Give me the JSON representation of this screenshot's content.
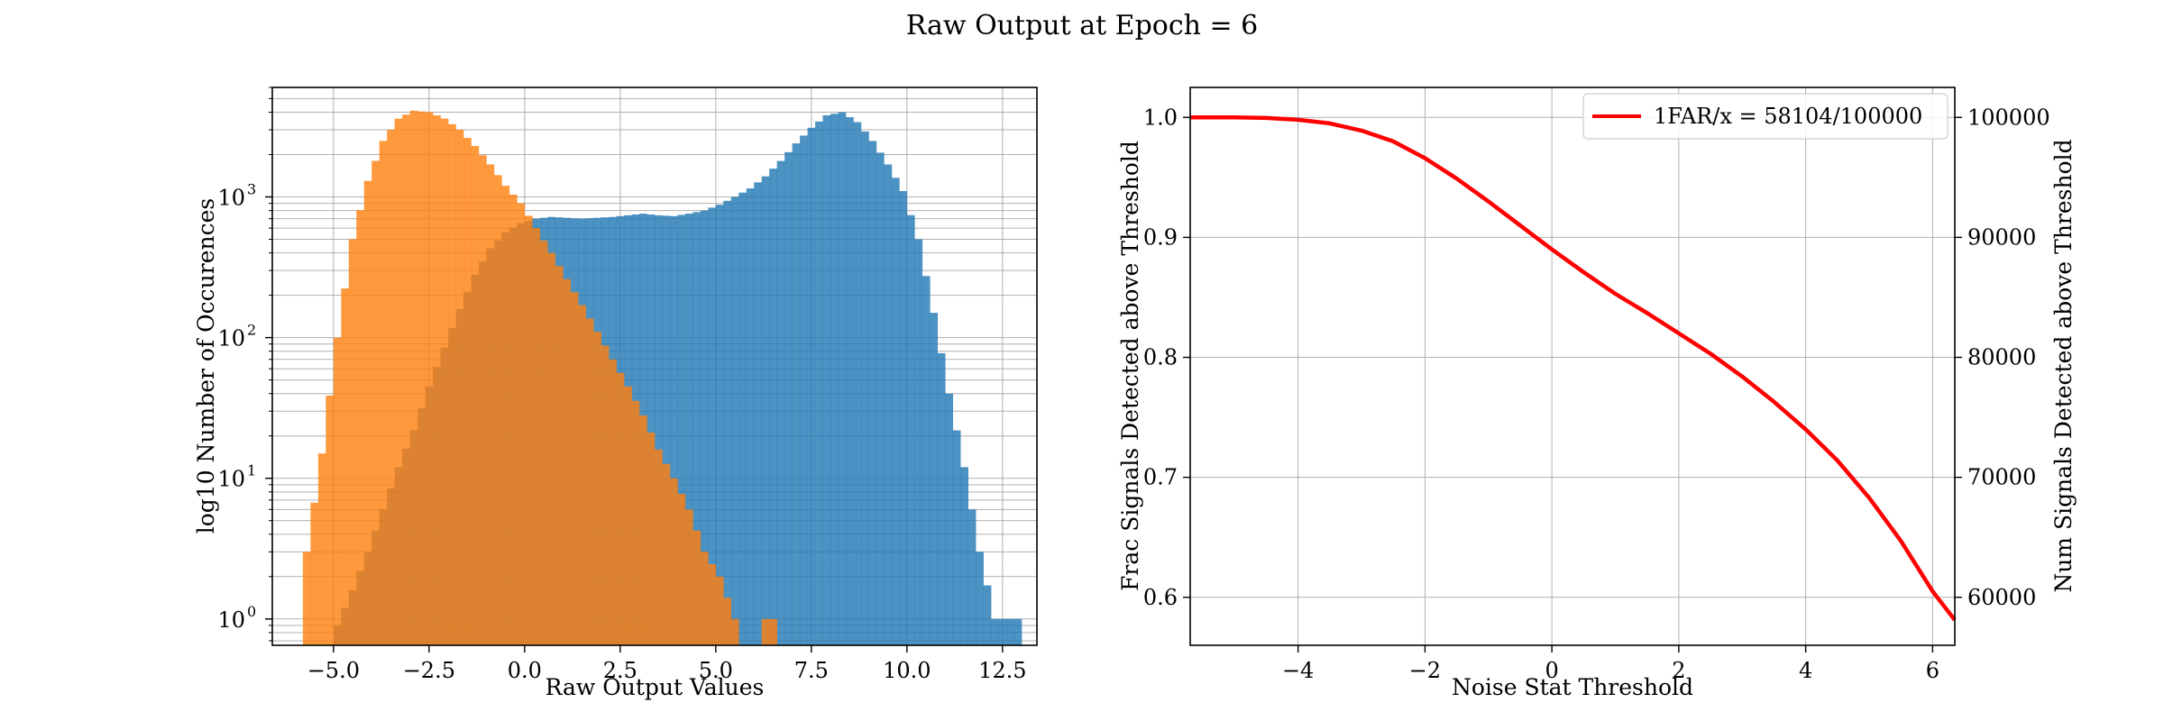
{
  "figure": {
    "title": "Raw Output at Epoch = 6"
  },
  "chart_data": [
    {
      "type": "bar",
      "subtype": "histogram",
      "title": "",
      "xlabel": "Raw Output Values",
      "ylabel": "log10 Number of Occurences",
      "yscale": "log",
      "xlim": [
        -6.6,
        13.4
      ],
      "ylim": [
        0.65,
        6000
      ],
      "xticks": [
        -5.0,
        -2.5,
        0.0,
        2.5,
        5.0,
        7.5,
        10.0,
        12.5
      ],
      "xtick_labels": [
        "−5.0",
        "−2.5",
        "0.0",
        "2.5",
        "5.0",
        "7.5",
        "10.0",
        "12.5"
      ],
      "yticks": [
        1,
        10,
        100,
        1000
      ],
      "ytick_labels": [
        "10",
        "10",
        "10",
        "10"
      ],
      "ytick_exponents": [
        "0",
        "1",
        "2",
        "3"
      ],
      "grid": true,
      "bin_width": 0.2,
      "series": [
        {
          "color": "#1f77b4",
          "opacity": 0.8,
          "points": [
            [
              -5.0,
              0.9
            ],
            [
              -4.6,
              1.6
            ],
            [
              -4.2,
              3
            ],
            [
              -3.8,
              6
            ],
            [
              -3.4,
              12
            ],
            [
              -3.0,
              22
            ],
            [
              -2.6,
              45
            ],
            [
              -2.2,
              85
            ],
            [
              -1.8,
              160
            ],
            [
              -1.4,
              280
            ],
            [
              -1.0,
              430
            ],
            [
              -0.6,
              560
            ],
            [
              -0.2,
              650
            ],
            [
              0.2,
              700
            ],
            [
              0.6,
              720
            ],
            [
              1.0,
              710
            ],
            [
              1.4,
              700
            ],
            [
              1.8,
              710
            ],
            [
              2.2,
              720
            ],
            [
              2.6,
              740
            ],
            [
              3.0,
              760
            ],
            [
              3.4,
              740
            ],
            [
              3.8,
              730
            ],
            [
              4.2,
              760
            ],
            [
              4.6,
              800
            ],
            [
              5.0,
              880
            ],
            [
              5.4,
              1000
            ],
            [
              5.8,
              1150
            ],
            [
              6.2,
              1400
            ],
            [
              6.6,
              1800
            ],
            [
              7.0,
              2400
            ],
            [
              7.4,
              3100
            ],
            [
              7.8,
              3800
            ],
            [
              8.2,
              4000
            ],
            [
              8.6,
              3400
            ],
            [
              9.0,
              2500
            ],
            [
              9.4,
              1700
            ],
            [
              9.8,
              1100
            ],
            [
              10.2,
              500
            ],
            [
              10.6,
              150
            ],
            [
              11.0,
              40
            ],
            [
              11.4,
              12
            ],
            [
              11.8,
              3
            ],
            [
              12.2,
              1
            ],
            [
              12.6,
              1
            ]
          ]
        },
        {
          "color": "#ff7f0e",
          "opacity": 0.8,
          "points": [
            [
              -5.8,
              3
            ],
            [
              -5.4,
              15
            ],
            [
              -5.0,
              100
            ],
            [
              -4.6,
              500
            ],
            [
              -4.2,
              1300
            ],
            [
              -3.8,
              2500
            ],
            [
              -3.4,
              3600
            ],
            [
              -3.0,
              4100
            ],
            [
              -2.6,
              4000
            ],
            [
              -2.2,
              3600
            ],
            [
              -1.8,
              3000
            ],
            [
              -1.4,
              2300
            ],
            [
              -1.0,
              1700
            ],
            [
              -0.6,
              1200
            ],
            [
              -0.2,
              900
            ],
            [
              0.2,
              600
            ],
            [
              0.6,
              400
            ],
            [
              1.0,
              260
            ],
            [
              1.4,
              170
            ],
            [
              1.8,
              110
            ],
            [
              2.2,
              70
            ],
            [
              2.6,
              45
            ],
            [
              3.0,
              28
            ],
            [
              3.4,
              16
            ],
            [
              3.8,
              10
            ],
            [
              4.2,
              6
            ],
            [
              4.6,
              3
            ],
            [
              5.0,
              2
            ],
            [
              5.4,
              1
            ],
            [
              6.2,
              1
            ]
          ]
        }
      ]
    },
    {
      "type": "line",
      "title": "",
      "xlabel": "Noise Stat Threshold",
      "ylabel": "Frac Signals Detected above Threshold",
      "ylabel_right": "Num Signals Detected above Threshold",
      "xlim": [
        -5.7,
        6.35
      ],
      "ylim": [
        0.56,
        1.025
      ],
      "ylim_right": [
        56000,
        102500
      ],
      "xticks": [
        -4,
        -2,
        0,
        2,
        4,
        6
      ],
      "xtick_labels": [
        "−4",
        "−2",
        "0",
        "2",
        "4",
        "6"
      ],
      "yticks": [
        0.6,
        0.7,
        0.8,
        0.9,
        1.0
      ],
      "ytick_labels": [
        "0.6",
        "0.7",
        "0.8",
        "0.9",
        "1.0"
      ],
      "yticks_right": [
        60000,
        70000,
        80000,
        90000,
        100000
      ],
      "ytick_labels_right": [
        "60000",
        "70000",
        "80000",
        "90000",
        "100000"
      ],
      "grid": true,
      "legend_position": "top-right",
      "series": [
        {
          "name": "1FAR/x = 58104/100000",
          "color": "#ff0000",
          "x": [
            -5.7,
            -5.0,
            -4.5,
            -4.0,
            -3.5,
            -3.0,
            -2.5,
            -2.0,
            -1.5,
            -1.0,
            -0.5,
            0.0,
            0.5,
            1.0,
            1.5,
            2.0,
            2.5,
            3.0,
            3.5,
            4.0,
            4.5,
            5.0,
            5.5,
            6.0,
            6.35
          ],
          "y": [
            1.0,
            1.0,
            0.9995,
            0.998,
            0.995,
            0.989,
            0.98,
            0.966,
            0.949,
            0.93,
            0.91,
            0.89,
            0.871,
            0.853,
            0.837,
            0.82,
            0.803,
            0.784,
            0.763,
            0.74,
            0.714,
            0.683,
            0.647,
            0.605,
            0.581
          ]
        }
      ]
    }
  ]
}
